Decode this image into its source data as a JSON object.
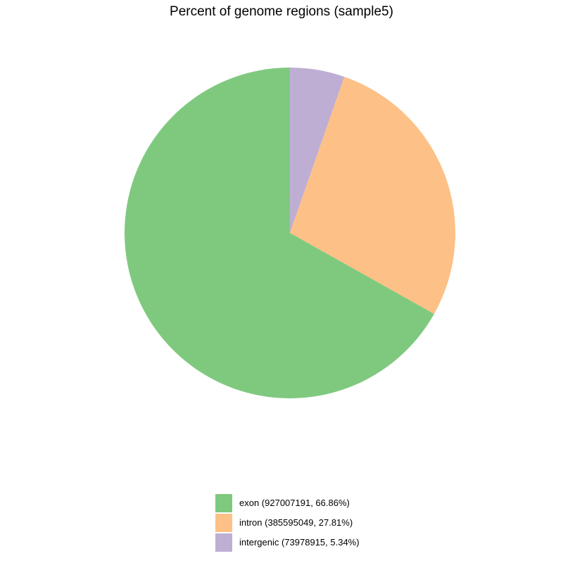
{
  "chart_data": {
    "type": "pie",
    "title": "Percent of genome regions (sample5)",
    "slices": [
      {
        "label": "exon (927007191, 66.86%)",
        "value": 927007191,
        "percent": 66.86,
        "color": "#7fc97f"
      },
      {
        "label": "intron (385595049, 27.81%)",
        "value": 385595049,
        "percent": 27.81,
        "color": "#fdc086"
      },
      {
        "label": "intergenic (73978915, 5.34%)",
        "value": 73978915,
        "percent": 5.34,
        "color": "#beaed4"
      }
    ],
    "start_direction": "top",
    "slice_order": "counterclockwise from top: intergenic, intron, exon",
    "legend_position": "bottom"
  }
}
